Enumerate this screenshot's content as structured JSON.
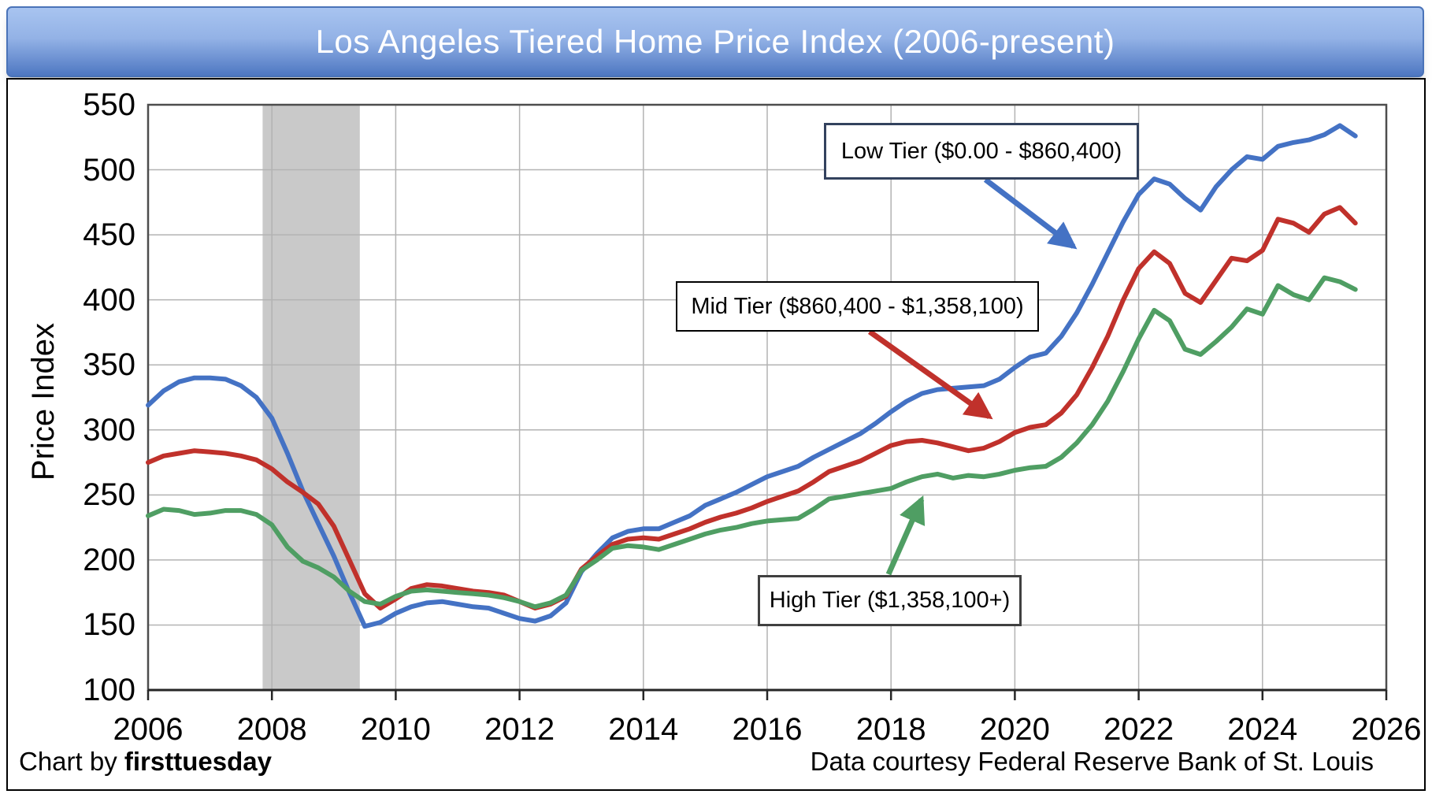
{
  "banner": {
    "title": "Los Angeles Tiered Home Price Index (2006-present)",
    "bg_top": "#a8c4f0",
    "bg_bottom": "#4e77c2",
    "border": "#4a73b8",
    "text_color": "#ffffff"
  },
  "annotations": {
    "low": {
      "label": "Low Tier ($0.00 - $860,400)"
    },
    "mid": {
      "label": "Mid Tier ($860,400 - $1,358,100)"
    },
    "high": {
      "label": "High Tier ($1,358,100+)"
    }
  },
  "credits": {
    "left_prefix": "Chart by ",
    "left_bold": "firsttuesday",
    "right": "Data courtesy Federal Reserve Bank of St. Louis"
  },
  "chart_data": {
    "type": "line",
    "title": "Los Angeles Tiered Home Price Index (2006-present)",
    "xlabel": "",
    "ylabel": "Price Index",
    "xlim": [
      2006,
      2026
    ],
    "ylim": [
      100,
      550
    ],
    "x_ticks": [
      2006,
      2008,
      2010,
      2012,
      2014,
      2016,
      2018,
      2020,
      2022,
      2024,
      2026
    ],
    "y_ticks": [
      100,
      150,
      200,
      250,
      300,
      350,
      400,
      450,
      500,
      550
    ],
    "grid": true,
    "grid_color": "#b3b3b3",
    "axis_color": "#262626",
    "box_color": "#4d4d4d",
    "legend_position": "annotated-boxes-with-arrows",
    "recession_band": {
      "from": 2007.85,
      "to": 2009.42,
      "color": "#c9c9c9"
    },
    "t_start": 2006.0,
    "t_step": 0.25,
    "series": [
      {
        "name": "Low Tier ($0.00 - $860,400)",
        "color": "#4472c4",
        "values": [
          319,
          330,
          337,
          340,
          340,
          339,
          334,
          325,
          309,
          282,
          253,
          228,
          203,
          175,
          149,
          152,
          159,
          164,
          167,
          168,
          166,
          164,
          163,
          159,
          155,
          153,
          157,
          167,
          191,
          205,
          217,
          222,
          224,
          224,
          229,
          234,
          242,
          247,
          252,
          258,
          264,
          268,
          272,
          279,
          285,
          291,
          297,
          305,
          314,
          322,
          328,
          331,
          332,
          333,
          334,
          339,
          348,
          356,
          359,
          372,
          390,
          412,
          436,
          460,
          481,
          493,
          489,
          478,
          469,
          487,
          500,
          510,
          508,
          518,
          521,
          523,
          527,
          534,
          526
        ]
      },
      {
        "name": "Mid Tier ($860,400 - $1,358,100)",
        "color": "#c0312b",
        "values": [
          275,
          280,
          282,
          284,
          283,
          282,
          280,
          277,
          270,
          260,
          252,
          243,
          226,
          200,
          174,
          163,
          170,
          178,
          181,
          180,
          178,
          176,
          175,
          173,
          168,
          163,
          166,
          172,
          193,
          203,
          212,
          216,
          217,
          216,
          220,
          224,
          229,
          233,
          236,
          240,
          245,
          249,
          253,
          260,
          268,
          272,
          276,
          282,
          288,
          291,
          292,
          290,
          287,
          284,
          286,
          291,
          298,
          302,
          304,
          313,
          327,
          348,
          372,
          400,
          424,
          437,
          428,
          405,
          398,
          415,
          432,
          430,
          438,
          462,
          459,
          452,
          466,
          471,
          459
        ]
      },
      {
        "name": "High Tier ($1,358,100+)",
        "color": "#4f9e63",
        "values": [
          234,
          239,
          238,
          235,
          236,
          238,
          238,
          235,
          227,
          210,
          199,
          194,
          187,
          176,
          168,
          166,
          172,
          176,
          177,
          176,
          175,
          174,
          173,
          171,
          168,
          164,
          167,
          173,
          192,
          200,
          209,
          211,
          210,
          208,
          212,
          216,
          220,
          223,
          225,
          228,
          230,
          231,
          232,
          239,
          247,
          249,
          251,
          253,
          255,
          260,
          264,
          266,
          263,
          265,
          264,
          266,
          269,
          271,
          272,
          279,
          290,
          304,
          322,
          345,
          370,
          392,
          384,
          362,
          358,
          368,
          379,
          393,
          389,
          411,
          404,
          400,
          417,
          414,
          408
        ]
      }
    ]
  }
}
